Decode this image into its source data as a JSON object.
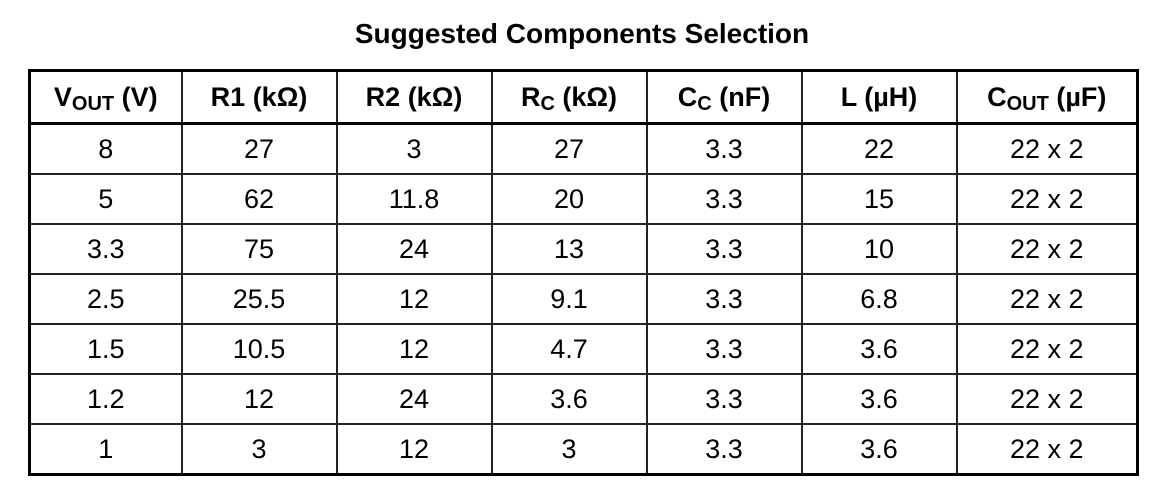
{
  "title": "Suggested Components Selection",
  "table": {
    "headers": [
      {
        "symbol": "V",
        "subscript": "OUT",
        "unit": "(V)"
      },
      {
        "symbol": "R1",
        "unit": "(kΩ)"
      },
      {
        "symbol": "R2",
        "unit": "(kΩ)"
      },
      {
        "symbol": "R",
        "subscript": "C",
        "unit": "(kΩ)"
      },
      {
        "symbol": "C",
        "subscript": "C",
        "unit": "(nF)"
      },
      {
        "symbol": "L",
        "unit": "(µH)"
      },
      {
        "symbol": "C",
        "subscript": "OUT",
        "unit": "(µF)"
      }
    ],
    "rows": [
      [
        8,
        27,
        3,
        27,
        3.3,
        22,
        "22 x 2"
      ],
      [
        5,
        62,
        11.8,
        20,
        3.3,
        15,
        "22 x 2"
      ],
      [
        3.3,
        75,
        24,
        13,
        3.3,
        10,
        "22 x 2"
      ],
      [
        2.5,
        25.5,
        12,
        9.1,
        3.3,
        6.8,
        "22 x 2"
      ],
      [
        1.5,
        10.5,
        12,
        4.7,
        3.3,
        3.6,
        "22 x 2"
      ],
      [
        1.2,
        12,
        24,
        3.6,
        3.3,
        3.6,
        "22 x 2"
      ],
      [
        1,
        3,
        12,
        3,
        3.3,
        3.6,
        "22 x 2"
      ]
    ]
  }
}
